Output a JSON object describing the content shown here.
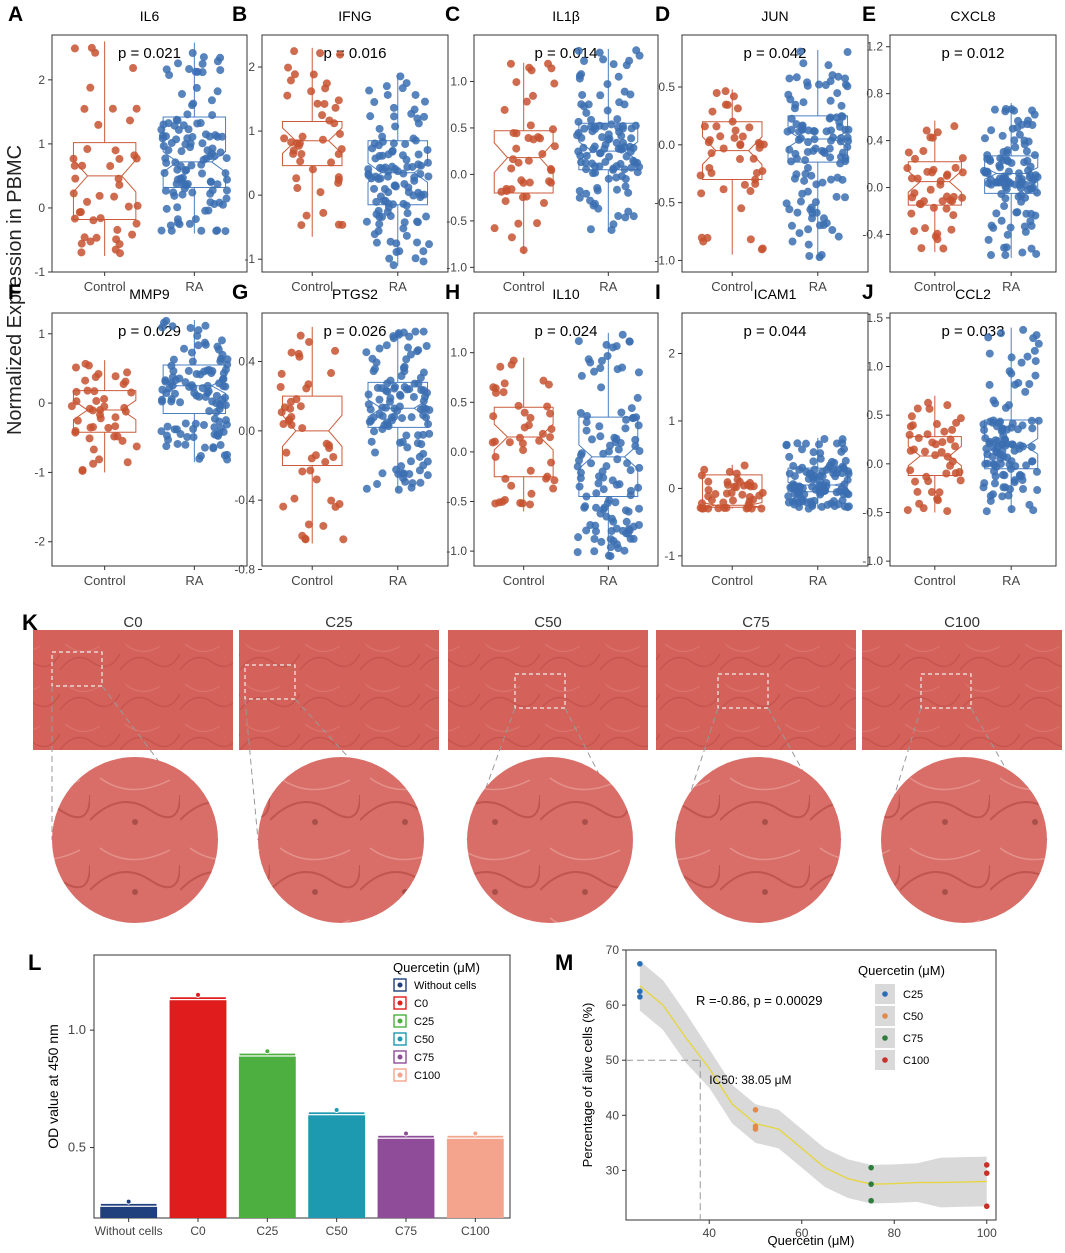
{
  "figure": {
    "y_label_top": "Normalized Expression in PBMC",
    "panel_letters": [
      "A",
      "B",
      "C",
      "D",
      "E",
      "F",
      "G",
      "H",
      "I",
      "J",
      "K",
      "L",
      "M"
    ],
    "group_labels": [
      "Control",
      "RA"
    ],
    "colors": {
      "control": "#c75230",
      "ra": "#3b6fb2",
      "box_control": "#cc5a3a",
      "box_ra": "#4a7fc0"
    }
  },
  "chart_data": [
    {
      "id": "A",
      "type": "box",
      "title": "IL6",
      "pvalue": "p = 0.021",
      "ylim": [
        -1.0,
        2.7
      ],
      "yticks": [
        -1,
        0,
        1,
        2
      ],
      "tick_labels": [
        "-1",
        "0",
        "1",
        "2"
      ],
      "control": {
        "min": -0.75,
        "q1": -0.18,
        "median": 0.5,
        "q3": 1.02,
        "max": 2.6,
        "notch": 0.25
      },
      "ra": {
        "min": -0.4,
        "q1": 0.32,
        "median": 0.72,
        "q3": 1.42,
        "max": 2.58,
        "notch": 0.16
      }
    },
    {
      "id": "B",
      "type": "box",
      "title": "IFNG",
      "pvalue": "p = 0.016",
      "ylim": [
        -1.2,
        2.5
      ],
      "yticks": [
        -1,
        0,
        1,
        2
      ],
      "tick_labels": [
        "-1",
        "0",
        "1",
        "2"
      ],
      "control": {
        "min": -0.65,
        "q1": 0.46,
        "median": 0.85,
        "q3": 1.15,
        "max": 2.3,
        "notch": 0.2
      },
      "ra": {
        "min": -1.1,
        "q1": -0.15,
        "median": 0.35,
        "q3": 0.85,
        "max": 1.9,
        "notch": 0.15
      }
    },
    {
      "id": "C",
      "type": "box",
      "title": "IL1β",
      "pvalue": "p = 0.014",
      "ylim": [
        -1.05,
        1.5
      ],
      "yticks": [
        -1,
        -0.5,
        0,
        0.5,
        1
      ],
      "tick_labels": [
        "-1.0",
        "-0.5",
        "0.0",
        "0.5",
        "1.0"
      ],
      "control": {
        "min": -0.85,
        "q1": -0.2,
        "median": 0.18,
        "q3": 0.47,
        "max": 1.2,
        "notch": 0.16
      },
      "ra": {
        "min": -0.62,
        "q1": 0.05,
        "median": 0.25,
        "q3": 0.55,
        "max": 1.35,
        "notch": 0.1
      }
    },
    {
      "id": "D",
      "type": "box",
      "title": "JUN",
      "pvalue": "p = 0.042",
      "ylim": [
        -1.1,
        0.95
      ],
      "yticks": [
        -1,
        -0.5,
        0,
        0.5
      ],
      "tick_labels": [
        "-1.0",
        "-0.5",
        "0.0",
        "0.5"
      ],
      "control": {
        "min": -0.95,
        "q1": -0.3,
        "median": -0.05,
        "q3": 0.2,
        "max": 0.48,
        "notch": 0.12
      },
      "ra": {
        "min": -1.0,
        "q1": -0.15,
        "median": 0.05,
        "q3": 0.25,
        "max": 0.82,
        "notch": 0.07
      }
    },
    {
      "id": "E",
      "type": "box",
      "title": "CXCL8",
      "pvalue": "p = 0.012",
      "ylim": [
        -0.72,
        1.3
      ],
      "yticks": [
        -0.4,
        0,
        0.4,
        0.8,
        1.2
      ],
      "tick_labels": [
        "-0.4",
        "0.0",
        "0.4",
        "0.8",
        "1.2"
      ],
      "control": {
        "min": -0.55,
        "q1": -0.15,
        "median": 0.05,
        "q3": 0.22,
        "max": 0.57,
        "notch": 0.09
      },
      "ra": {
        "min": -0.6,
        "q1": -0.05,
        "median": 0.12,
        "q3": 0.27,
        "max": 0.72,
        "notch": 0.05
      }
    },
    {
      "id": "F",
      "type": "box",
      "title": "MMP9",
      "pvalue": "p = 0.029",
      "ylim": [
        -2.35,
        1.3
      ],
      "yticks": [
        -2,
        -1,
        0,
        1
      ],
      "tick_labels": [
        "-2",
        "-1",
        "0",
        "1"
      ],
      "control": {
        "min": -1.0,
        "q1": -0.42,
        "median": -0.1,
        "q3": 0.18,
        "max": 0.62,
        "notch": 0.14
      },
      "ra": {
        "min": -0.85,
        "q1": -0.15,
        "median": 0.25,
        "q3": 0.55,
        "max": 1.2,
        "notch": 0.11
      }
    },
    {
      "id": "G",
      "type": "box",
      "title": "PTGS2",
      "pvalue": "p = 0.026",
      "ylim": [
        -0.78,
        0.68
      ],
      "yticks": [
        -0.8,
        -0.4,
        0,
        0.4
      ],
      "tick_labels": [
        "-0.8",
        "-0.4",
        "0.0",
        "0.4"
      ],
      "control": {
        "min": -0.65,
        "q1": -0.2,
        "median": 0.0,
        "q3": 0.2,
        "max": 0.6,
        "notch": 0.09
      },
      "ra": {
        "min": -0.35,
        "q1": 0.02,
        "median": 0.13,
        "q3": 0.28,
        "max": 0.58,
        "notch": 0.05
      }
    },
    {
      "id": "H",
      "type": "box",
      "title": "IL10",
      "pvalue": "p = 0.024",
      "ylim": [
        -1.15,
        1.4
      ],
      "yticks": [
        -1,
        -0.5,
        0,
        0.5,
        1
      ],
      "tick_labels": [
        "-1.0",
        "-0.5",
        "0.0",
        "0.5",
        "1.0"
      ],
      "control": {
        "min": -0.6,
        "q1": -0.25,
        "median": 0.15,
        "q3": 0.45,
        "max": 0.95,
        "notch": 0.13
      },
      "ra": {
        "min": -1.05,
        "q1": -0.45,
        "median": -0.05,
        "q3": 0.35,
        "max": 1.2,
        "notch": 0.12
      }
    },
    {
      "id": "I",
      "type": "box",
      "title": "ICAM1",
      "pvalue": "p = 0.044",
      "ylim": [
        -1.15,
        2.6
      ],
      "yticks": [
        -1,
        0,
        1,
        2
      ],
      "tick_labels": [
        "-1",
        "0",
        "1",
        "2"
      ],
      "control": {
        "min": -0.3,
        "q1": -0.28,
        "median": -0.25,
        "q3": 0.2,
        "max": 0.35,
        "notch": 0.04
      },
      "ra": {
        "min": -0.3,
        "q1": -0.05,
        "median": 0.05,
        "q3": 0.3,
        "max": 0.75,
        "notch": 0.04
      }
    },
    {
      "id": "J",
      "type": "box",
      "title": "CCL2",
      "pvalue": "p = 0.033",
      "ylim": [
        -1.05,
        1.55
      ],
      "yticks": [
        -1,
        -0.5,
        0,
        0.5,
        1,
        1.5
      ],
      "tick_labels": [
        "-1.0",
        "-0.5",
        "0.0",
        "0.5",
        "1.0",
        "1.5"
      ],
      "control": {
        "min": -0.5,
        "q1": -0.12,
        "median": 0.08,
        "q3": 0.28,
        "max": 0.7,
        "notch": 0.1
      },
      "ra": {
        "min": -0.5,
        "q1": -0.05,
        "median": 0.18,
        "q3": 0.45,
        "max": 1.4,
        "notch": 0.08
      }
    },
    {
      "id": "L",
      "type": "bar",
      "legend_title": "Quercetin (μM)",
      "ylabel": "OD value at 450 nm",
      "categories": [
        "Without cells",
        "C0",
        "C25",
        "C50",
        "C75",
        "C100"
      ],
      "values": [
        0.26,
        1.14,
        0.9,
        0.65,
        0.55,
        0.55
      ],
      "colors": [
        "#1f3f7d",
        "#e01c1c",
        "#4caf3f",
        "#1d9ab0",
        "#8e4c99",
        "#f4a48c"
      ],
      "ylim": [
        0.2,
        1.32
      ],
      "yticks": [
        0.5,
        1.0
      ],
      "tick_labels": [
        "0.5",
        "1.0"
      ]
    },
    {
      "id": "M",
      "type": "scatter",
      "legend_title": "Quercetin (μM)",
      "xlabel": "Quercetin (μM)",
      "ylabel": "Percentage of alive cells (%)",
      "annotation": "R =-0.86, p = 0.00029",
      "ic50_label": "IC50: 38.05 μM",
      "ic50": {
        "x": 38.05,
        "y": 50
      },
      "series": [
        {
          "name": "C25",
          "x": [
            25,
            25,
            25
          ],
          "y": [
            67.5,
            62.5,
            61.5
          ],
          "color": "#2a6fb5"
        },
        {
          "name": "C50",
          "x": [
            50,
            50,
            50
          ],
          "y": [
            41,
            38,
            37.5
          ],
          "color": "#e08a4c"
        },
        {
          "name": "C75",
          "x": [
            75,
            75,
            75
          ],
          "y": [
            30.5,
            27.5,
            24.5
          ],
          "color": "#2f7d3c"
        },
        {
          "name": "C100",
          "x": [
            100,
            100,
            100
          ],
          "y": [
            31,
            29.5,
            23.5
          ],
          "color": "#c8302a"
        }
      ],
      "fit": {
        "x": [
          25,
          30,
          35,
          40,
          45,
          50,
          55,
          60,
          65,
          70,
          75,
          80,
          85,
          90,
          95,
          100
        ],
        "y": [
          63.5,
          60,
          54,
          48.5,
          42,
          38.5,
          37.5,
          34,
          30.5,
          28.5,
          27.5,
          27.6,
          27.8,
          27.8,
          27.9,
          28
        ]
      },
      "xlim": [
        22,
        102
      ],
      "ylim": [
        21,
        70
      ],
      "xticks": [
        40,
        60,
        80,
        100
      ],
      "yticks": [
        30,
        40,
        50,
        60,
        70
      ]
    }
  ],
  "microscopy": {
    "labels": [
      "C0",
      "C25",
      "C50",
      "C75",
      "C100"
    ]
  }
}
